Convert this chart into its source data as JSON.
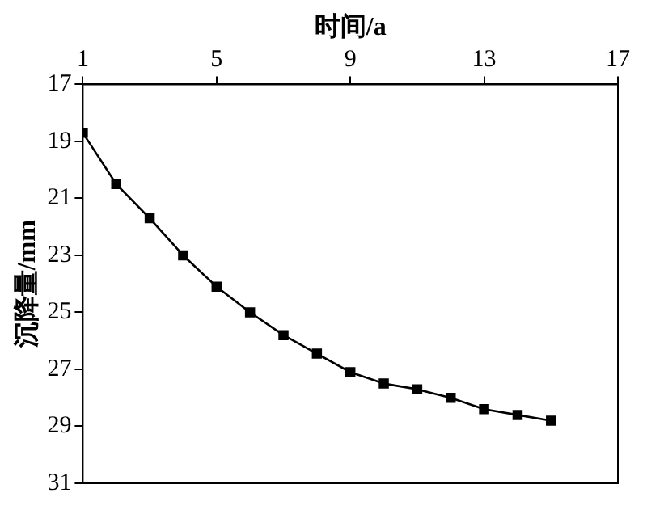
{
  "chart_data": {
    "type": "line",
    "xlabel": "时间/a",
    "ylabel": "沉降量/mm",
    "x": [
      1,
      2,
      3,
      4,
      5,
      6,
      7,
      8,
      9,
      10,
      11,
      12,
      13,
      14,
      15
    ],
    "series": [
      {
        "color": "#000000",
        "values": [
          18.7,
          20.5,
          21.7,
          23.0,
          24.1,
          25.0,
          25.8,
          26.45,
          27.1,
          27.5,
          27.7,
          28.0,
          28.4,
          28.6,
          28.8
        ]
      }
    ],
    "xlim": [
      1,
      17
    ],
    "xticks": [
      1,
      5,
      9,
      13,
      17
    ],
    "ylim": [
      31,
      17
    ],
    "yticks": [
      17,
      19,
      21,
      23,
      25,
      27,
      29,
      31
    ],
    "marker": "square",
    "line_style": "solid",
    "legend": false
  }
}
